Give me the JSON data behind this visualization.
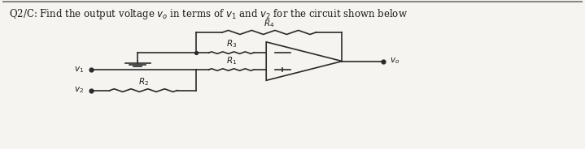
{
  "title_parts": [
    "Q2/C: Find the output voltage ",
    "v",
    "o",
    " in terms of ",
    "v",
    "1",
    " and ",
    "v",
    "2",
    " for the circuit shown below"
  ],
  "bg_color": "#f5f4f0",
  "line_color": "#2a2a2a",
  "text_color": "#1a1a1a",
  "figsize": [
    7.19,
    1.84
  ],
  "dpi": 100,
  "xlim": [
    0,
    10
  ],
  "ylim": [
    0,
    10
  ]
}
